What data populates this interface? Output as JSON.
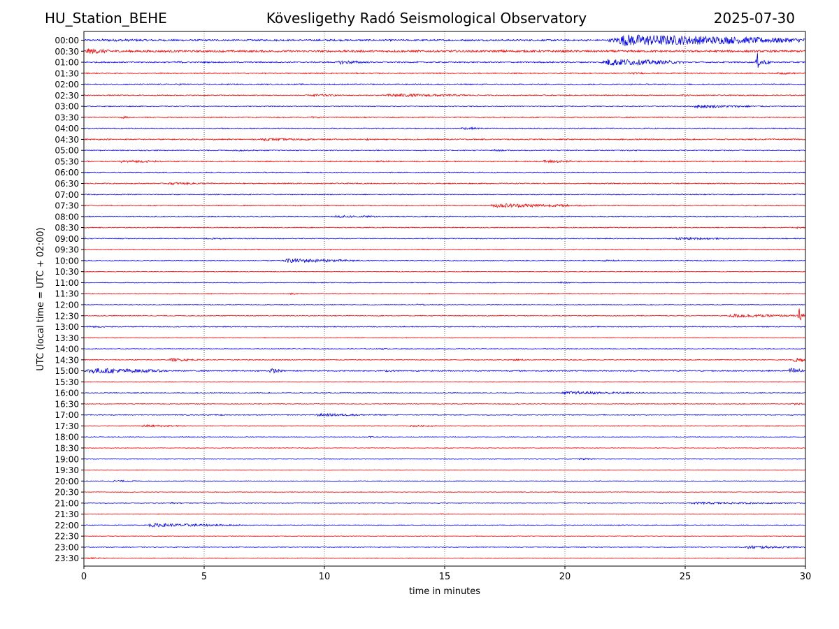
{
  "header": {
    "station": "HU_Station_BEHE",
    "observatory": "Kövesligethy Radó Seismological Observatory",
    "date": "2025-07-30"
  },
  "chart_data": {
    "type": "line",
    "title": "Kövesligethy Radó Seismological Observatory",
    "xlabel": "time in minutes",
    "ylabel": "UTC (local time = UTC + 02:00)",
    "xlim": [
      0,
      30
    ],
    "x_ticks": [
      0,
      5,
      10,
      15,
      20,
      25,
      30
    ],
    "grid": "vertical dotted lines at x ticks",
    "colors": [
      "#0000ff",
      "#ff0000"
    ],
    "row_labels": [
      "00:00",
      "00:30",
      "01:00",
      "01:30",
      "02:00",
      "02:30",
      "03:00",
      "03:30",
      "04:00",
      "04:30",
      "05:00",
      "05:30",
      "06:00",
      "06:30",
      "07:00",
      "07:30",
      "08:00",
      "08:30",
      "09:00",
      "09:30",
      "10:00",
      "10:30",
      "11:00",
      "11:30",
      "12:00",
      "12:30",
      "13:00",
      "13:30",
      "14:00",
      "14:30",
      "15:00",
      "15:30",
      "16:00",
      "16:30",
      "17:00",
      "17:30",
      "18:00",
      "18:30",
      "19:00",
      "19:30",
      "20:00",
      "20:30",
      "21:00",
      "21:30",
      "22:00",
      "22:30",
      "23:00",
      "23:30"
    ],
    "row_noise": [
      1.2,
      1.4,
      0.9,
      0.8,
      0.7,
      0.7,
      0.6,
      0.7,
      0.6,
      0.8,
      0.7,
      0.8,
      0.6,
      0.7,
      0.6,
      0.7,
      0.6,
      0.6,
      0.6,
      0.6,
      0.6,
      0.5,
      0.5,
      0.6,
      0.5,
      0.6,
      0.6,
      0.5,
      0.5,
      0.6,
      0.8,
      0.5,
      0.6,
      0.5,
      0.6,
      0.6,
      0.5,
      0.4,
      0.4,
      0.4,
      0.4,
      0.4,
      0.5,
      0.4,
      0.5,
      0.4,
      0.5,
      0.5
    ],
    "events": [
      {
        "row": 0,
        "start": 0.0,
        "end": 8.5,
        "amp": 1.8
      },
      {
        "row": 0,
        "start": 21.8,
        "end": 30.0,
        "amp": 9.0
      },
      {
        "row": 1,
        "start": 0.0,
        "end": 1.7,
        "amp": 4.0
      },
      {
        "row": 1,
        "start": 17.2,
        "end": 19.0,
        "amp": 2.0
      },
      {
        "row": 2,
        "start": 3.8,
        "end": 4.6,
        "amp": 1.8
      },
      {
        "row": 2,
        "start": 10.5,
        "end": 12.0,
        "amp": 3.0
      },
      {
        "row": 2,
        "start": 21.5,
        "end": 25.0,
        "amp": 5.5
      },
      {
        "row": 2,
        "start": 27.9,
        "end": 28.6,
        "amp": 6.0
      },
      {
        "row": 3,
        "start": 22.5,
        "end": 24.0,
        "amp": 1.6
      },
      {
        "row": 3,
        "start": 28.8,
        "end": 30.0,
        "amp": 1.8
      },
      {
        "row": 4,
        "start": 3.9,
        "end": 4.6,
        "amp": 1.5
      },
      {
        "row": 5,
        "start": 9.4,
        "end": 11.0,
        "amp": 2.0
      },
      {
        "row": 5,
        "start": 12.4,
        "end": 16.5,
        "amp": 2.6
      },
      {
        "row": 5,
        "start": 24.8,
        "end": 25.6,
        "amp": 1.5
      },
      {
        "row": 6,
        "start": 25.2,
        "end": 28.5,
        "amp": 2.5
      },
      {
        "row": 7,
        "start": 1.5,
        "end": 2.2,
        "amp": 1.8
      },
      {
        "row": 7,
        "start": 9.4,
        "end": 10.3,
        "amp": 1.4
      },
      {
        "row": 8,
        "start": 15.6,
        "end": 17.0,
        "amp": 1.8
      },
      {
        "row": 9,
        "start": 7.2,
        "end": 10.5,
        "amp": 2.0
      },
      {
        "row": 9,
        "start": 11.7,
        "end": 12.2,
        "amp": 1.5
      },
      {
        "row": 10,
        "start": 6.2,
        "end": 7.8,
        "amp": 1.3
      },
      {
        "row": 10,
        "start": 17.0,
        "end": 17.6,
        "amp": 1.8
      },
      {
        "row": 11,
        "start": 1.4,
        "end": 3.8,
        "amp": 2.2
      },
      {
        "row": 11,
        "start": 12.3,
        "end": 13.0,
        "amp": 1.4
      },
      {
        "row": 11,
        "start": 19.0,
        "end": 21.0,
        "amp": 2.3
      },
      {
        "row": 13,
        "start": 3.4,
        "end": 6.0,
        "amp": 1.8
      },
      {
        "row": 13,
        "start": 8.2,
        "end": 9.5,
        "amp": 1.3
      },
      {
        "row": 15,
        "start": 16.8,
        "end": 21.0,
        "amp": 3.2
      },
      {
        "row": 16,
        "start": 10.3,
        "end": 12.5,
        "amp": 2.0
      },
      {
        "row": 17,
        "start": 29.6,
        "end": 30.0,
        "amp": 1.8
      },
      {
        "row": 18,
        "start": 0.0,
        "end": 0.4,
        "amp": 1.5
      },
      {
        "row": 18,
        "start": 5.0,
        "end": 6.5,
        "amp": 1.3
      },
      {
        "row": 18,
        "start": 24.5,
        "end": 27.0,
        "amp": 2.0
      },
      {
        "row": 20,
        "start": 8.2,
        "end": 11.5,
        "amp": 3.2
      },
      {
        "row": 20,
        "start": 21.5,
        "end": 22.8,
        "amp": 1.3
      },
      {
        "row": 22,
        "start": 19.7,
        "end": 20.5,
        "amp": 1.3
      },
      {
        "row": 23,
        "start": 8.5,
        "end": 9.5,
        "amp": 1.3
      },
      {
        "row": 24,
        "start": 13.8,
        "end": 14.5,
        "amp": 1.3
      },
      {
        "row": 25,
        "start": 26.7,
        "end": 30.0,
        "amp": 2.8
      },
      {
        "row": 25,
        "start": 29.7,
        "end": 30.0,
        "amp": 8.0
      },
      {
        "row": 26,
        "start": 0.0,
        "end": 1.8,
        "amp": 1.3
      },
      {
        "row": 28,
        "start": 12.3,
        "end": 12.9,
        "amp": 1.3
      },
      {
        "row": 29,
        "start": 3.5,
        "end": 4.9,
        "amp": 2.5
      },
      {
        "row": 29,
        "start": 17.8,
        "end": 18.8,
        "amp": 1.3
      },
      {
        "row": 29,
        "start": 29.5,
        "end": 30.0,
        "amp": 5.0
      },
      {
        "row": 30,
        "start": 0.0,
        "end": 3.5,
        "amp": 4.5
      },
      {
        "row": 30,
        "start": 7.7,
        "end": 8.3,
        "amp": 4.0
      },
      {
        "row": 30,
        "start": 12.5,
        "end": 13.5,
        "amp": 1.6
      },
      {
        "row": 30,
        "start": 29.3,
        "end": 30.0,
        "amp": 5.0
      },
      {
        "row": 32,
        "start": 19.7,
        "end": 24.0,
        "amp": 2.3
      },
      {
        "row": 33,
        "start": 29.4,
        "end": 30.0,
        "amp": 2.0
      },
      {
        "row": 34,
        "start": 5.6,
        "end": 6.1,
        "amp": 1.6
      },
      {
        "row": 34,
        "start": 9.5,
        "end": 12.5,
        "amp": 2.2
      },
      {
        "row": 35,
        "start": 2.3,
        "end": 4.5,
        "amp": 2.0
      },
      {
        "row": 35,
        "start": 13.5,
        "end": 15.0,
        "amp": 1.5
      },
      {
        "row": 36,
        "start": 11.8,
        "end": 12.4,
        "amp": 1.5
      },
      {
        "row": 38,
        "start": 20.5,
        "end": 21.5,
        "amp": 1.3
      },
      {
        "row": 40,
        "start": 1.0,
        "end": 2.4,
        "amp": 1.5
      },
      {
        "row": 42,
        "start": 3.6,
        "end": 4.1,
        "amp": 1.5
      },
      {
        "row": 42,
        "start": 25.0,
        "end": 30.0,
        "amp": 1.8
      },
      {
        "row": 43,
        "start": 14.8,
        "end": 15.4,
        "amp": 1.0
      },
      {
        "row": 44,
        "start": 2.5,
        "end": 6.5,
        "amp": 2.8
      },
      {
        "row": 46,
        "start": 27.4,
        "end": 30.0,
        "amp": 2.5
      },
      {
        "row": 47,
        "start": 0.0,
        "end": 1.2,
        "amp": 1.2
      }
    ],
    "spikes": [
      {
        "row": 2,
        "x": 28.0,
        "amp": 14
      },
      {
        "row": 25,
        "x": 29.75,
        "amp": 12
      },
      {
        "row": 30,
        "x": 29.85,
        "amp": 10
      }
    ]
  }
}
